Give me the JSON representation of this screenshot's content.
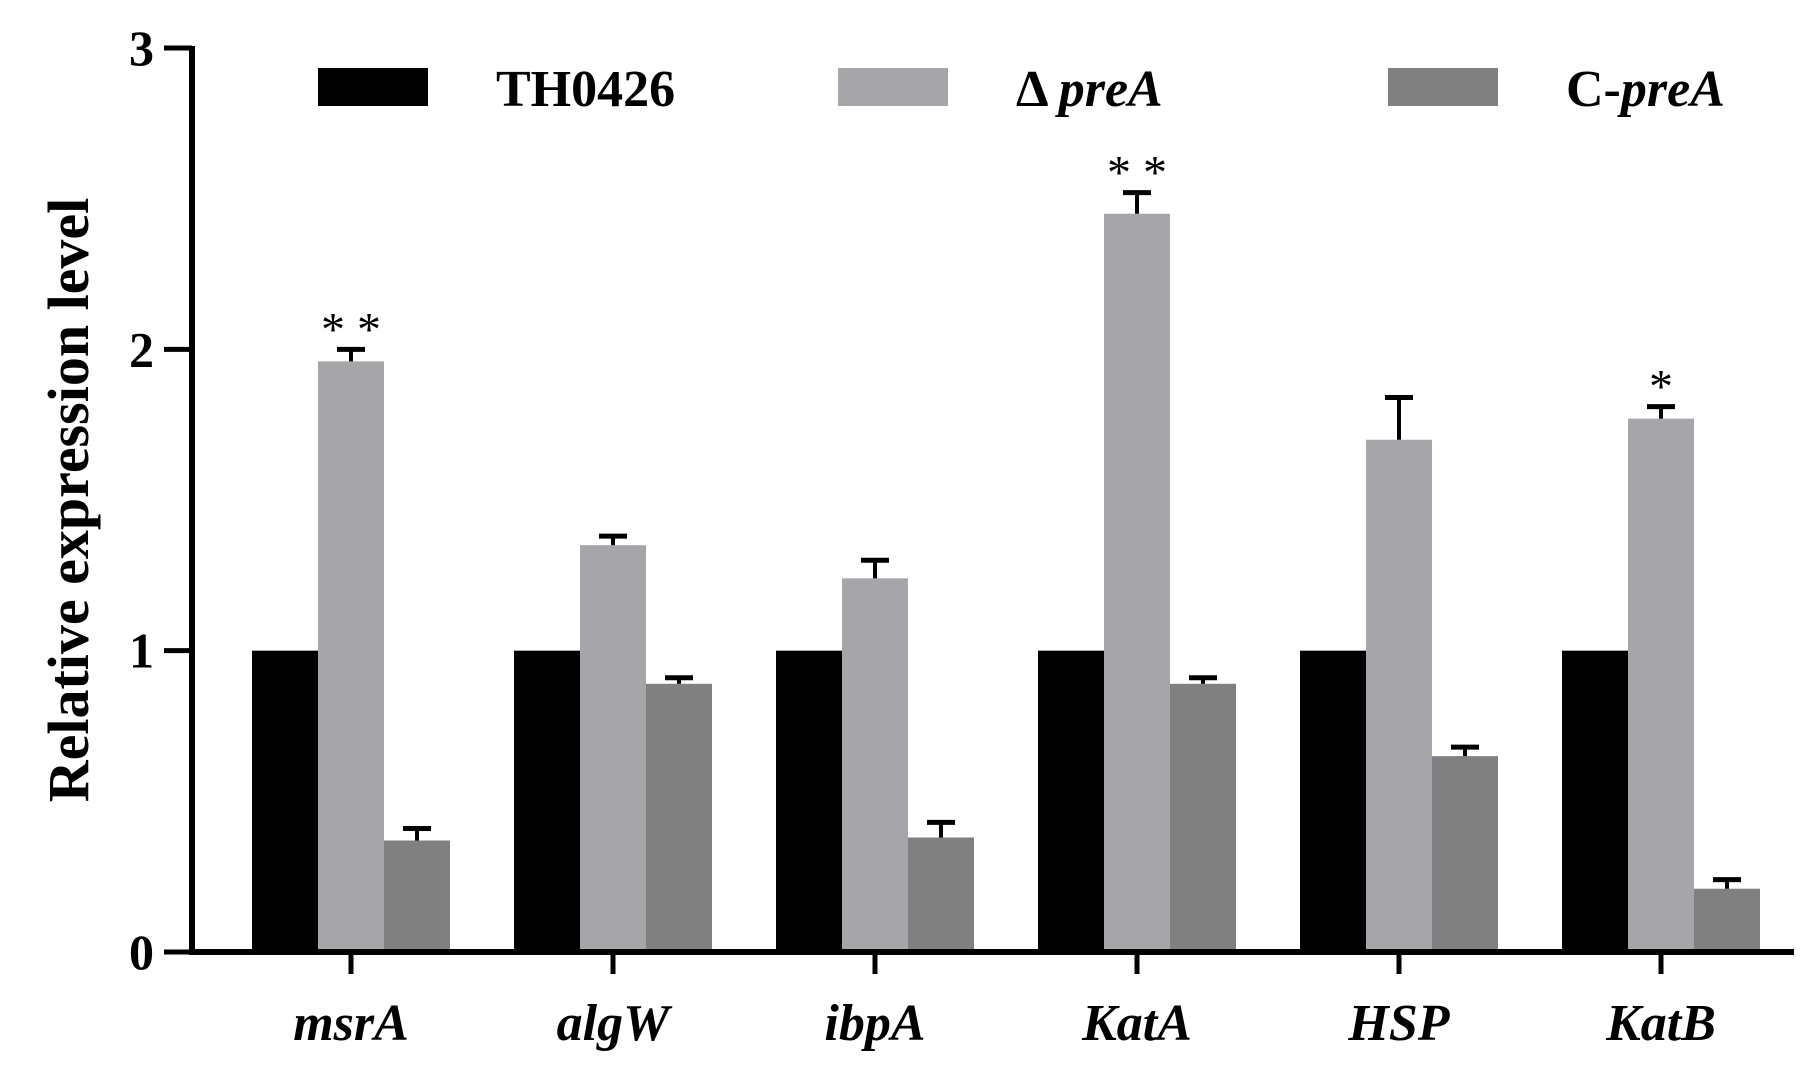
{
  "chart_data": {
    "type": "bar",
    "title": "",
    "xlabel": "",
    "ylabel": "Relative expression level",
    "ylim": [
      0,
      3
    ],
    "yticks": [
      "0",
      "1",
      "2",
      "3"
    ],
    "categories": [
      "msrA",
      "algW",
      "ibpA",
      "KatA",
      "HSP",
      "KatB"
    ],
    "series": [
      {
        "name": "TH0426",
        "legend_prefix": "",
        "legend_name": "TH0426",
        "color": "#000000",
        "values": [
          1.0,
          1.0,
          1.0,
          1.0,
          1.0,
          1.0
        ],
        "errors": [
          0,
          0,
          0,
          0,
          0,
          0
        ],
        "significance": [
          "",
          "",
          "",
          "",
          "",
          ""
        ]
      },
      {
        "name": "Δ preA",
        "legend_prefix": "Δ ",
        "legend_name": "preA",
        "color": "#a6a6aa",
        "values": [
          1.96,
          1.35,
          1.24,
          2.45,
          1.7,
          1.77
        ],
        "errors": [
          0.04,
          0.03,
          0.06,
          0.07,
          0.14,
          0.04
        ],
        "significance": [
          "**",
          "",
          "",
          "**",
          "",
          "*"
        ]
      },
      {
        "name": "C-preA",
        "legend_prefix": "C-",
        "legend_name": "preA",
        "color": "#808080",
        "values": [
          0.37,
          0.89,
          0.38,
          0.89,
          0.65,
          0.21
        ],
        "errors": [
          0.04,
          0.02,
          0.05,
          0.02,
          0.03,
          0.03
        ],
        "significance": [
          "",
          "",
          "",
          "",
          "",
          ""
        ]
      }
    ],
    "legend_position": "top"
  }
}
